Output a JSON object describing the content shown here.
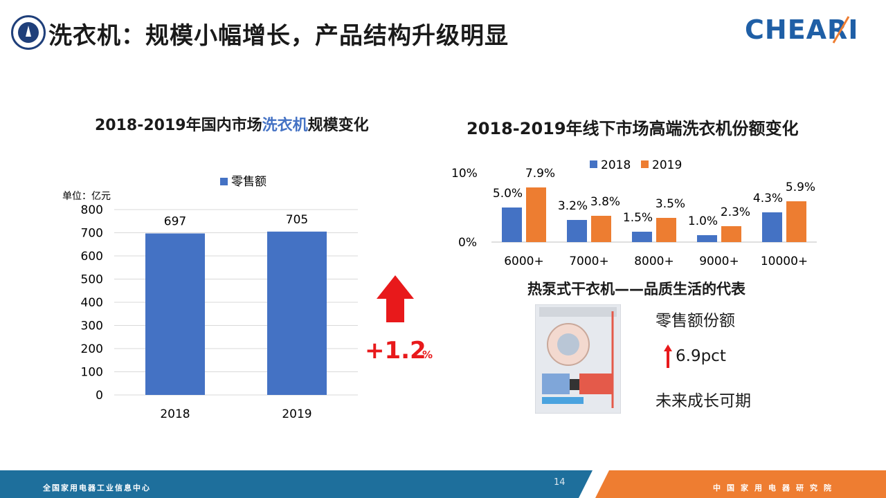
{
  "header": {
    "title": "洗衣机：规模小幅增长，产品结构升级明显",
    "brand": "CHEARI"
  },
  "left_chart": {
    "title_prefix": "2018-2019年国内市场",
    "title_highlight": "洗衣机",
    "title_suffix": "规模变化",
    "legend": "零售额",
    "unit": "单位：亿元",
    "growth_value": "+1.2",
    "growth_unit": "%",
    "bar_color": "#4472c4",
    "arrow_color": "#e8191b"
  },
  "right_chart": {
    "title": "2018-2019年线下市场高端洗衣机份额变化",
    "y_ticks": [
      "10%",
      "0%"
    ],
    "legend_2018": "2018",
    "legend_2019": "2019",
    "color_2018": "#4472c4",
    "color_2019": "#ed7d31"
  },
  "heat_pump": {
    "title": "热泵式干衣机——品质生活的代表",
    "line1": "零售额份额",
    "line2": "6.9pct",
    "line3": "未来成长可期"
  },
  "footer": {
    "left_text": "全国家用电器工业信息中心",
    "page_number": "14",
    "right_text": "中国家用电器研究院",
    "blue": "#1e6f9c",
    "orange": "#ee7d31"
  },
  "chart_data": [
    {
      "type": "bar",
      "title": "2018-2019年国内市场洗衣机规模变化",
      "categories": [
        "2018",
        "2019"
      ],
      "series": [
        {
          "name": "零售额",
          "values": [
            697,
            705
          ]
        }
      ],
      "ylim": [
        0,
        800
      ],
      "y_ticks": [
        0,
        100,
        200,
        300,
        400,
        500,
        600,
        700,
        800
      ],
      "data_labels": [
        "697",
        "705"
      ],
      "ylabel": "单位：亿元",
      "legend": "top",
      "grid": true
    },
    {
      "type": "bar",
      "title": "2018-2019年线下市场高端洗衣机份额变化",
      "categories": [
        "6000+",
        "7000+",
        "8000+",
        "9000+",
        "10000+"
      ],
      "series": [
        {
          "name": "2018",
          "values": [
            5.0,
            3.2,
            1.5,
            1.0,
            4.3
          ],
          "labels": [
            "5.0%",
            "3.2%",
            "1.5%",
            "1.0%",
            "4.3%"
          ]
        },
        {
          "name": "2019",
          "values": [
            7.9,
            3.8,
            3.5,
            2.3,
            5.9
          ],
          "labels": [
            "7.9%",
            "3.8%",
            "3.5%",
            "2.3%",
            "5.9%"
          ]
        }
      ],
      "ylim": [
        0,
        10
      ],
      "y_ticks": [
        "0%",
        "10%"
      ],
      "legend": "top",
      "grid": false
    }
  ]
}
